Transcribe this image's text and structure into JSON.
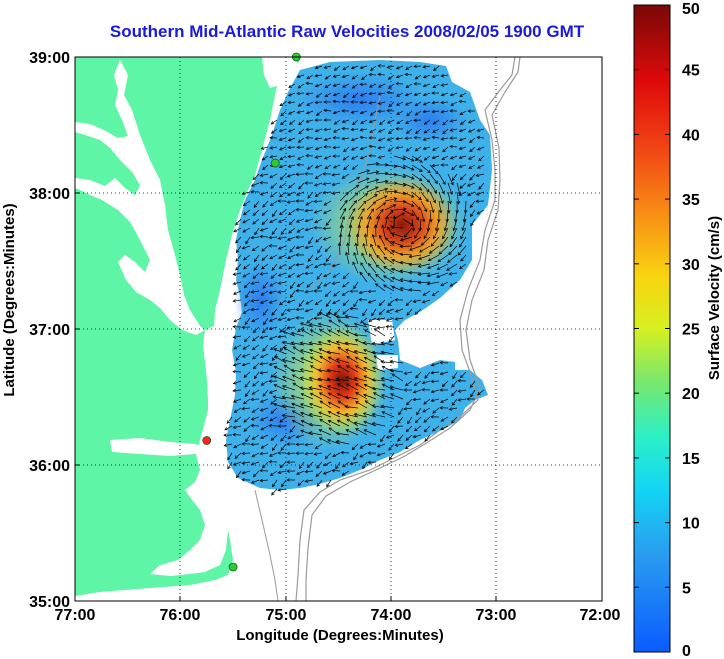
{
  "title": "Southern Mid-Atlantic Raw Velocities 2008/02/05 1900 GMT",
  "map": {
    "xlabel": "Longitude (Degrees:Minutes)",
    "ylabel": "Latitude (Degrees:Minutes)",
    "x_ticks": [
      "77:00",
      "76:00",
      "75:00",
      "74:00",
      "73:00",
      "72:00"
    ],
    "y_ticks": [
      "39:00",
      "38:00",
      "37:00",
      "36:00",
      "35:00"
    ],
    "lon_range": [
      -77,
      -72
    ],
    "lat_range": [
      35,
      39
    ],
    "grid": true,
    "land_color": "#5ef5a6",
    "water_color": "#ffffff",
    "stations": [
      {
        "lon": -74.9,
        "lat": 39.0,
        "color": "#2ecc2e"
      },
      {
        "lon": -75.1,
        "lat": 38.22,
        "color": "#2ecc2e"
      },
      {
        "lon": -75.75,
        "lat": 36.18,
        "color": "#ff2020"
      },
      {
        "lon": -75.5,
        "lat": 35.25,
        "color": "#2ecc2e"
      }
    ]
  },
  "colorbar": {
    "label": "Surface Velocity (cm/s)",
    "ticks": [
      "0",
      "5",
      "10",
      "15",
      "20",
      "25",
      "30",
      "35",
      "40",
      "45",
      "50"
    ],
    "range": [
      0,
      50
    ]
  }
}
